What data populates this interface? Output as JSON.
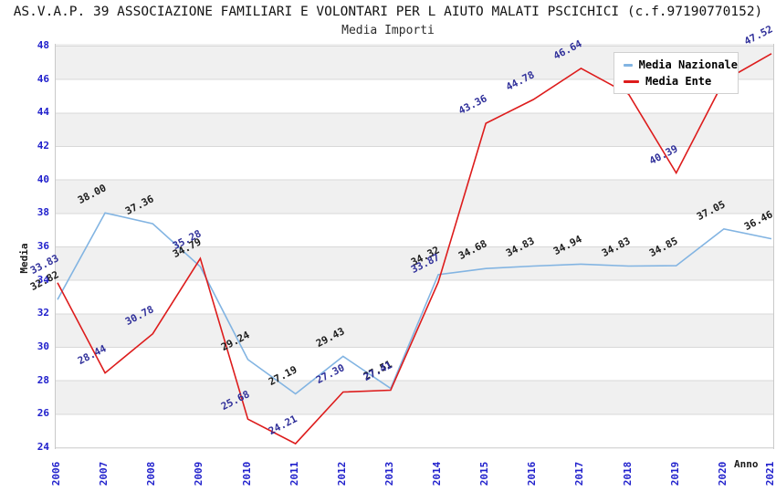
{
  "header": {
    "title": "AS.V.A.P. 39 ASSOCIAZIONE FAMILIARI E VOLONTARI PER L AIUTO MALATI PSCICHICI (c.f.97190770152)",
    "subtitle": "Media Importi"
  },
  "axes": {
    "y_label": "Media",
    "x_label": "Anno",
    "y_ticks": [
      48,
      46,
      44,
      42,
      40,
      38,
      36,
      34,
      32,
      30,
      28,
      26,
      24
    ],
    "tick_color": "#2020cc"
  },
  "legend": {
    "items": [
      {
        "label": "Media Nazionale",
        "color": "#82b4e2"
      },
      {
        "label": "Media Ente",
        "color": "#dd1c1c"
      }
    ]
  },
  "chart_data": {
    "type": "line",
    "title": "Media Importi",
    "xlabel": "Anno",
    "ylabel": "Media",
    "xlim": [
      2006,
      2021
    ],
    "ylim": [
      24,
      48
    ],
    "grid": "horizontal-bands",
    "legend_position": "top-right",
    "x": [
      2006,
      2007,
      2008,
      2009,
      2010,
      2011,
      2012,
      2013,
      2014,
      2015,
      2016,
      2017,
      2018,
      2019,
      2020,
      2021
    ],
    "series": [
      {
        "name": "Media Nazionale",
        "color": "#82b4e2",
        "label_color": "#1c1c1c",
        "values": [
          32.82,
          38.0,
          37.36,
          34.79,
          29.24,
          27.19,
          29.43,
          27.51,
          34.32,
          34.68,
          34.83,
          34.94,
          34.83,
          34.85,
          37.05,
          36.46
        ],
        "labels": [
          "32.82",
          "38.00",
          "37.36",
          "34.79",
          "29.24",
          "27.19",
          "29.43",
          "27.51",
          "34.32",
          "34.68",
          "34.83",
          "34.94",
          "34.83",
          "34.85",
          "37.05",
          "36.46"
        ]
      },
      {
        "name": "Media Ente",
        "color": "#dd1c1c",
        "label_color": "#30309a",
        "values": [
          33.83,
          28.44,
          30.78,
          35.28,
          25.68,
          24.21,
          27.3,
          27.41,
          33.87,
          43.36,
          44.78,
          46.64,
          45.1,
          40.39,
          45.9,
          47.52
        ],
        "labels": [
          "33.83",
          "28.44",
          "30.78",
          "35.28",
          "25.68",
          "24.21",
          "27.30",
          "27.41",
          "33.87",
          "43.36",
          "44.78",
          "46.64",
          null,
          "40.39",
          null,
          "47.52"
        ],
        "note": "2018 and 2020 point labels are hidden behind the legend box; those two values are estimated from the line position"
      }
    ]
  }
}
